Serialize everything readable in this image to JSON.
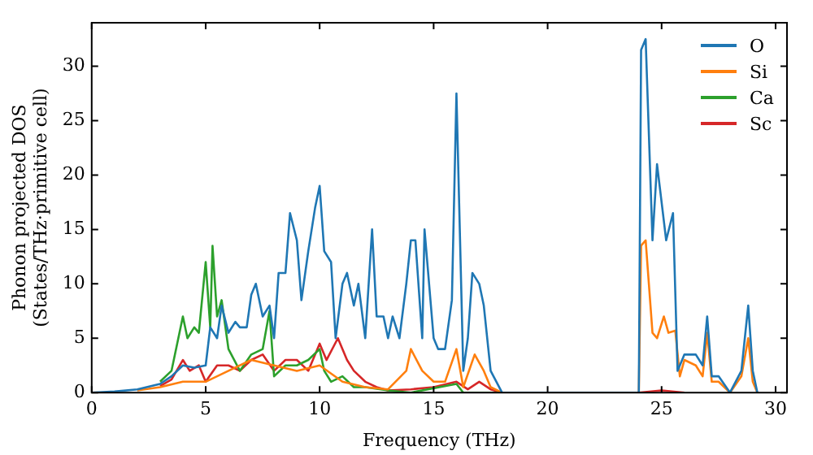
{
  "chart_data": {
    "type": "line",
    "xlabel": "Frequency (THz)",
    "ylabel": "Phonon projected DOS\n(States/THz·primitive cell)",
    "xlim": [
      0,
      30.5
    ],
    "xticks": [
      0,
      5,
      10,
      15,
      20,
      25,
      30
    ],
    "ylim": [
      0,
      34
    ],
    "yticks": [
      0,
      5,
      10,
      15,
      20,
      25,
      30
    ],
    "grid": false,
    "legend": "top right",
    "marker": "none",
    "line_style": "solid",
    "series": [
      {
        "name": "O",
        "color": "#1f77b4",
        "x": [
          0,
          1,
          2,
          3,
          3.5,
          4,
          4.5,
          5,
          5.2,
          5.5,
          5.7,
          6,
          6.3,
          6.5,
          6.8,
          7,
          7.2,
          7.5,
          7.8,
          8,
          8.2,
          8.5,
          8.7,
          9,
          9.2,
          9.5,
          9.8,
          10,
          10.2,
          10.5,
          10.7,
          11,
          11.2,
          11.5,
          11.7,
          12,
          12.3,
          12.5,
          12.8,
          13,
          13.2,
          13.5,
          13.8,
          14,
          14.2,
          14.5,
          14.6,
          15,
          15.2,
          15.5,
          15.8,
          16,
          16.3,
          16.5,
          16.7,
          17,
          17.2,
          17.5,
          18,
          24,
          24.1,
          24.3,
          24.6,
          24.8,
          25.2,
          25.5,
          25.7,
          26,
          26.5,
          26.8,
          27,
          27.2,
          27.5,
          28,
          28.5,
          28.8,
          29,
          29.2
        ],
        "values": [
          0,
          0.1,
          0.3,
          0.8,
          1.5,
          2.5,
          2.3,
          2.5,
          6,
          5,
          8,
          5.5,
          6.5,
          6,
          6,
          9,
          10,
          7,
          8,
          5,
          11,
          11,
          16.5,
          14,
          8.5,
          13,
          17,
          19,
          13,
          12,
          5,
          10,
          11,
          8,
          10,
          5,
          15,
          7,
          7,
          5,
          7,
          5,
          10,
          14,
          14,
          5,
          15,
          5,
          4,
          4,
          8.5,
          27.5,
          2,
          5,
          11,
          10,
          8,
          2,
          0,
          0,
          31.5,
          32.5,
          14,
          21,
          14,
          16.5,
          2,
          3.5,
          3.5,
          2.5,
          7,
          1.5,
          1.5,
          0,
          2,
          8,
          2,
          0
        ]
      },
      {
        "name": "Si",
        "color": "#ff7f0e",
        "x": [
          2,
          3,
          4,
          5,
          6,
          7,
          8,
          9,
          10,
          11,
          12,
          13,
          13.8,
          14,
          14.5,
          15,
          15.5,
          16,
          16.3,
          16.8,
          17.2,
          17.5,
          18,
          24,
          24.1,
          24.3,
          24.6,
          24.8,
          25.1,
          25.3,
          25.6,
          25.8,
          26,
          26.5,
          26.8,
          27,
          27.2,
          27.5,
          28,
          28.5,
          28.8,
          29,
          29.2
        ],
        "values": [
          0.2,
          0.5,
          1,
          1,
          2,
          3,
          2.5,
          2,
          2.5,
          1,
          0.5,
          0.3,
          2,
          4,
          2,
          1,
          1,
          4,
          0.5,
          3.5,
          2,
          0.5,
          0,
          0,
          13.5,
          14,
          5.5,
          5,
          7,
          5.5,
          5.7,
          1.5,
          3,
          2.5,
          1.5,
          5.5,
          1,
          1,
          0,
          1.5,
          5,
          1,
          0
        ]
      },
      {
        "name": "Ca",
        "color": "#2ca02c",
        "x": [
          3,
          3.5,
          4,
          4.2,
          4.5,
          4.7,
          5,
          5.2,
          5.3,
          5.5,
          5.7,
          6,
          6.5,
          7,
          7.5,
          7.8,
          8,
          8.5,
          9,
          9.5,
          10,
          10.2,
          10.5,
          11,
          11.5,
          12,
          13,
          14,
          16,
          16.3,
          18
        ],
        "values": [
          1,
          2,
          7,
          5,
          6,
          5.5,
          12,
          6,
          13.5,
          7,
          8.5,
          4,
          2,
          3.5,
          4,
          7.5,
          1.5,
          2.5,
          2.5,
          3,
          4,
          2,
          1,
          1.5,
          0.5,
          0.5,
          0.2,
          0,
          0.8,
          0,
          0
        ]
      },
      {
        "name": "Sc",
        "color": "#d62728",
        "x": [
          3,
          3.5,
          4,
          4.3,
          4.7,
          5,
          5.5,
          6,
          6.5,
          7,
          7.5,
          8,
          8.5,
          9,
          9.5,
          10,
          10.3,
          10.8,
          11.2,
          11.5,
          12,
          12.5,
          13,
          14,
          15,
          16,
          16.5,
          17,
          17.5,
          18,
          24,
          25,
          26
        ],
        "values": [
          0.6,
          1.2,
          3,
          2,
          2.5,
          1,
          2.5,
          2.5,
          2,
          3,
          3.5,
          2,
          3,
          3,
          2,
          4.5,
          3,
          5,
          3,
          2,
          1,
          0.5,
          0.2,
          0.3,
          0.5,
          1,
          0.3,
          1,
          0.3,
          0,
          0,
          0.2,
          0
        ]
      }
    ]
  }
}
